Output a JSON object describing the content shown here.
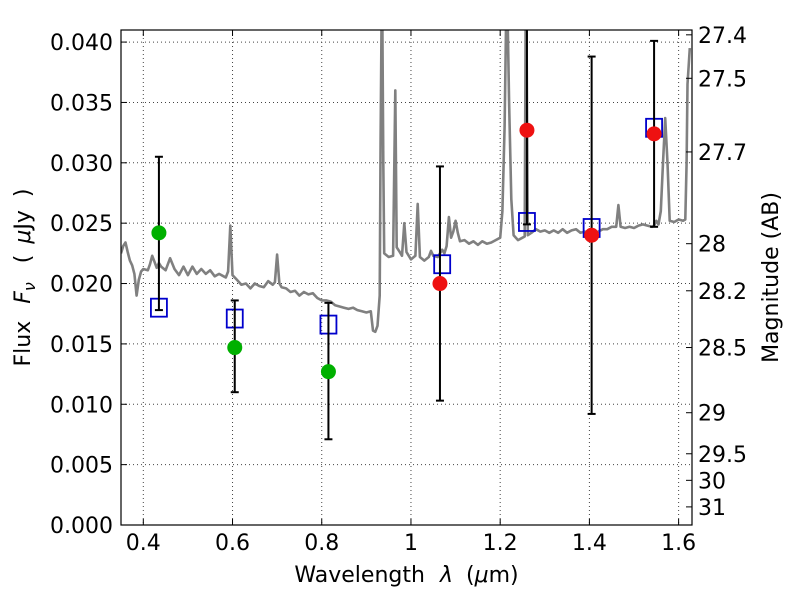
{
  "chart_data": {
    "type": "scatter",
    "xlim": [
      0.35,
      1.63
    ],
    "ylim": [
      0.0,
      0.041
    ],
    "grid": true,
    "xlabel": {
      "prefix": "Wavelength",
      "lambda": "λ",
      "open": "(",
      "mu": "μ",
      "unit": "m)"
    },
    "ylabel": {
      "flux": "Flux",
      "F": "F",
      "nu": "ν",
      "open": "(",
      "mu": "μ",
      "unit": "Jy",
      "close": ")"
    },
    "y2label": "Magnitude (AB)",
    "xticks": [
      0.4,
      0.6,
      0.8,
      1.0,
      1.2,
      1.4,
      1.6
    ],
    "xtick_labels": [
      "0.4",
      "0.6",
      "0.8",
      "1",
      "1.2",
      "1.4",
      "1.6"
    ],
    "yticks": [
      0.0,
      0.005,
      0.01,
      0.015,
      0.02,
      0.025,
      0.03,
      0.035,
      0.04
    ],
    "ytick_labels": [
      "0.000",
      "0.005",
      "0.010",
      "0.015",
      "0.020",
      "0.025",
      "0.030",
      "0.035",
      "0.040"
    ],
    "mag_ticks": [
      {
        "label": "27.4",
        "flux": 0.0406
      },
      {
        "label": "27.5",
        "flux": 0.037
      },
      {
        "label": "27.7",
        "flux": 0.0309
      },
      {
        "label": "28",
        "flux": 0.0233
      },
      {
        "label": "28.2",
        "flux": 0.0194
      },
      {
        "label": "28.5",
        "flux": 0.0147
      },
      {
        "label": "29",
        "flux": 0.0093
      },
      {
        "label": "29.5",
        "flux": 0.0059
      },
      {
        "label": "30",
        "flux": 0.0037
      },
      {
        "label": "31",
        "flux": 0.0015
      }
    ],
    "colors": {
      "spectrum": "#808080",
      "model": "#0000cc",
      "obs_optical": "#00b000",
      "obs_ir": "#ee1111",
      "errorbar": "#000000",
      "grid": "#444444"
    },
    "series": [
      {
        "kind": "spectrum",
        "points": [
          [
            0.35,
            0.0225
          ],
          [
            0.355,
            0.0231
          ],
          [
            0.36,
            0.0234
          ],
          [
            0.365,
            0.0226
          ],
          [
            0.37,
            0.0219
          ],
          [
            0.375,
            0.0215
          ],
          [
            0.38,
            0.0208
          ],
          [
            0.385,
            0.019
          ],
          [
            0.39,
            0.0203
          ],
          [
            0.395,
            0.021
          ],
          [
            0.4,
            0.0212
          ],
          [
            0.41,
            0.0211
          ],
          [
            0.415,
            0.0216
          ],
          [
            0.42,
            0.0223
          ],
          [
            0.425,
            0.0218
          ],
          [
            0.43,
            0.0213
          ],
          [
            0.435,
            0.0217
          ],
          [
            0.44,
            0.0214
          ],
          [
            0.45,
            0.0211
          ],
          [
            0.46,
            0.0221
          ],
          [
            0.47,
            0.0212
          ],
          [
            0.48,
            0.0207
          ],
          [
            0.49,
            0.0214
          ],
          [
            0.5,
            0.0207
          ],
          [
            0.51,
            0.0214
          ],
          [
            0.52,
            0.0208
          ],
          [
            0.53,
            0.0212
          ],
          [
            0.54,
            0.0208
          ],
          [
            0.55,
            0.0211
          ],
          [
            0.56,
            0.0206
          ],
          [
            0.57,
            0.0208
          ],
          [
            0.58,
            0.0206
          ],
          [
            0.585,
            0.0205
          ],
          [
            0.59,
            0.021
          ],
          [
            0.595,
            0.0248
          ],
          [
            0.6,
            0.0207
          ],
          [
            0.61,
            0.0203
          ],
          [
            0.62,
            0.0199
          ],
          [
            0.63,
            0.02
          ],
          [
            0.64,
            0.0196
          ],
          [
            0.65,
            0.02
          ],
          [
            0.66,
            0.0198
          ],
          [
            0.67,
            0.0197
          ],
          [
            0.68,
            0.0202
          ],
          [
            0.69,
            0.0199
          ],
          [
            0.695,
            0.0201
          ],
          [
            0.7,
            0.0224
          ],
          [
            0.705,
            0.02
          ],
          [
            0.71,
            0.0197
          ],
          [
            0.72,
            0.0196
          ],
          [
            0.73,
            0.0193
          ],
          [
            0.74,
            0.0194
          ],
          [
            0.75,
            0.019
          ],
          [
            0.76,
            0.0193
          ],
          [
            0.77,
            0.0191
          ],
          [
            0.78,
            0.0192
          ],
          [
            0.79,
            0.0188
          ],
          [
            0.8,
            0.0186
          ],
          [
            0.81,
            0.0186
          ],
          [
            0.82,
            0.0185
          ],
          [
            0.83,
            0.0182
          ],
          [
            0.84,
            0.0181
          ],
          [
            0.85,
            0.018
          ],
          [
            0.86,
            0.0179
          ],
          [
            0.87,
            0.018
          ],
          [
            0.88,
            0.0178
          ],
          [
            0.89,
            0.0177
          ],
          [
            0.9,
            0.0176
          ],
          [
            0.91,
            0.0177
          ],
          [
            0.915,
            0.0161
          ],
          [
            0.92,
            0.016
          ],
          [
            0.925,
            0.0165
          ],
          [
            0.93,
            0.019
          ],
          [
            0.932,
            0.032
          ],
          [
            0.934,
            0.0412
          ],
          [
            0.936,
            0.0412
          ],
          [
            0.938,
            0.03
          ],
          [
            0.94,
            0.0225
          ],
          [
            0.95,
            0.0222
          ],
          [
            0.96,
            0.0223
          ],
          [
            0.965,
            0.036
          ],
          [
            0.968,
            0.023
          ],
          [
            0.975,
            0.0226
          ],
          [
            0.98,
            0.0223
          ],
          [
            0.985,
            0.025
          ],
          [
            0.99,
            0.0226
          ],
          [
            1.0,
            0.022
          ],
          [
            1.01,
            0.0223
          ],
          [
            1.015,
            0.0266
          ],
          [
            1.02,
            0.0222
          ],
          [
            1.03,
            0.0219
          ],
          [
            1.04,
            0.0222
          ],
          [
            1.045,
            0.0227
          ],
          [
            1.05,
            0.0223
          ],
          [
            1.06,
            0.0222
          ],
          [
            1.07,
            0.0228
          ],
          [
            1.075,
            0.0225
          ],
          [
            1.08,
            0.0231
          ],
          [
            1.085,
            0.0255
          ],
          [
            1.09,
            0.0238
          ],
          [
            1.095,
            0.0243
          ],
          [
            1.1,
            0.0252
          ],
          [
            1.105,
            0.0242
          ],
          [
            1.11,
            0.0235
          ],
          [
            1.12,
            0.0236
          ],
          [
            1.13,
            0.0233
          ],
          [
            1.14,
            0.0235
          ],
          [
            1.15,
            0.0232
          ],
          [
            1.16,
            0.0235
          ],
          [
            1.17,
            0.0233
          ],
          [
            1.18,
            0.0234
          ],
          [
            1.19,
            0.0236
          ],
          [
            1.2,
            0.0238
          ],
          [
            1.205,
            0.026
          ],
          [
            1.21,
            0.033
          ],
          [
            1.213,
            0.0412
          ],
          [
            1.217,
            0.0412
          ],
          [
            1.22,
            0.035
          ],
          [
            1.225,
            0.027
          ],
          [
            1.23,
            0.024
          ],
          [
            1.24,
            0.0236
          ],
          [
            1.25,
            0.0238
          ],
          [
            1.255,
            0.0239
          ],
          [
            1.257,
            0.0412
          ],
          [
            1.259,
            0.0412
          ],
          [
            1.262,
            0.024
          ],
          [
            1.27,
            0.0242
          ],
          [
            1.28,
            0.0245
          ],
          [
            1.29,
            0.0243
          ],
          [
            1.3,
            0.0244
          ],
          [
            1.31,
            0.0242
          ],
          [
            1.32,
            0.0244
          ],
          [
            1.33,
            0.0242
          ],
          [
            1.34,
            0.0245
          ],
          [
            1.35,
            0.0242
          ],
          [
            1.36,
            0.0244
          ],
          [
            1.37,
            0.0245
          ],
          [
            1.38,
            0.0242
          ],
          [
            1.39,
            0.0243
          ],
          [
            1.4,
            0.024
          ],
          [
            1.41,
            0.0241
          ],
          [
            1.42,
            0.0243
          ],
          [
            1.43,
            0.0245
          ],
          [
            1.44,
            0.0245
          ],
          [
            1.45,
            0.0247
          ],
          [
            1.46,
            0.0247
          ],
          [
            1.465,
            0.0265
          ],
          [
            1.47,
            0.0247
          ],
          [
            1.48,
            0.0246
          ],
          [
            1.49,
            0.0247
          ],
          [
            1.5,
            0.0246
          ],
          [
            1.51,
            0.0248
          ],
          [
            1.52,
            0.0249
          ],
          [
            1.53,
            0.0248
          ],
          [
            1.54,
            0.0247
          ],
          [
            1.545,
            0.0248
          ],
          [
            1.55,
            0.0252
          ],
          [
            1.555,
            0.0249
          ],
          [
            1.56,
            0.026
          ],
          [
            1.565,
            0.03
          ],
          [
            1.57,
            0.0337
          ],
          [
            1.575,
            0.03
          ],
          [
            1.58,
            0.0252
          ],
          [
            1.59,
            0.0251
          ],
          [
            1.6,
            0.0253
          ],
          [
            1.61,
            0.0252
          ],
          [
            1.615,
            0.0253
          ],
          [
            1.618,
            0.03
          ],
          [
            1.62,
            0.0365
          ],
          [
            1.625,
            0.0395
          ]
        ]
      },
      {
        "kind": "model",
        "x": [
          0.435,
          0.605,
          0.815,
          1.07,
          1.26,
          1.405,
          1.545
        ],
        "y": [
          0.018,
          0.0171,
          0.0166,
          0.0216,
          0.0251,
          0.0246,
          0.0329
        ]
      },
      {
        "kind": "observed",
        "points": [
          {
            "x": 0.435,
            "y": 0.0242,
            "lo": 0.0178,
            "hi": 0.0305,
            "color": "obs_optical"
          },
          {
            "x": 0.605,
            "y": 0.0147,
            "lo": 0.011,
            "hi": 0.0186,
            "color": "obs_optical"
          },
          {
            "x": 0.815,
            "y": 0.0127,
            "lo": 0.0071,
            "hi": 0.0184,
            "color": "obs_optical"
          },
          {
            "x": 1.065,
            "y": 0.02,
            "lo": 0.0103,
            "hi": 0.0297,
            "color": "obs_ir"
          },
          {
            "x": 1.26,
            "y": 0.0327,
            "lo": 0.0249,
            "hi": 0.0412,
            "color": "obs_ir"
          },
          {
            "x": 1.405,
            "y": 0.024,
            "lo": 0.0092,
            "hi": 0.0388,
            "color": "obs_ir"
          },
          {
            "x": 1.545,
            "y": 0.0324,
            "lo": 0.0247,
            "hi": 0.0401,
            "color": "obs_ir"
          }
        ]
      }
    ]
  }
}
